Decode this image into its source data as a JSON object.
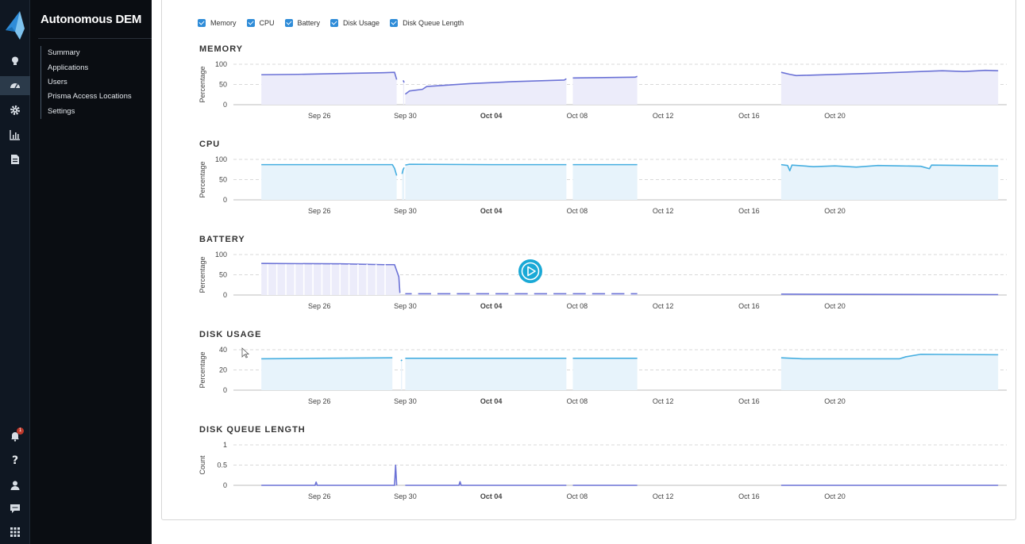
{
  "app": {
    "title": "Autonomous DEM",
    "nav_items": [
      "Summary",
      "Applications",
      "Users",
      "Prisma Access Locations",
      "Settings"
    ],
    "selected_nav": "Users",
    "notification_count": "1",
    "rail_icons": [
      "bulb-icon",
      "dashboard-icon",
      "gear-icon",
      "chart-icon",
      "report-icon",
      "bell-icon",
      "help-icon",
      "user-icon",
      "chat-icon",
      "apps-grid-icon"
    ],
    "accent_color": "#2f8cd8"
  },
  "legend": [
    {
      "label": "Memory",
      "checked": true
    },
    {
      "label": "CPU",
      "checked": true
    },
    {
      "label": "Battery",
      "checked": true
    },
    {
      "label": "Disk Usage",
      "checked": true
    },
    {
      "label": "Disk Queue Length",
      "checked": true
    }
  ],
  "chart_data": [
    {
      "type": "area",
      "title": "MEMORY",
      "ylabel": "Percentage",
      "ylim": [
        0,
        100
      ],
      "yticks": [
        "0",
        "50",
        "100"
      ],
      "xticks": [
        "Sep 26",
        "Sep 30",
        "Oct 04",
        "Oct 08",
        "Oct 12",
        "Oct 16",
        "Oct 20"
      ],
      "bold_xtick": "Oct 04",
      "color": "#6b72d6",
      "fill": "#ececfa",
      "segments": [
        [
          [
            23.3,
            74
          ],
          [
            25,
            75
          ],
          [
            27,
            77
          ],
          [
            29,
            79
          ],
          [
            29.5,
            80
          ],
          [
            29.6,
            62
          ]
        ],
        [
          [
            29.9,
            60
          ],
          [
            29.95,
            55
          ]
        ],
        [
          [
            30.0,
            26
          ],
          [
            30.2,
            34
          ],
          [
            30.8,
            38
          ],
          [
            31,
            45
          ],
          [
            33,
            52
          ],
          [
            35,
            57
          ],
          [
            37.4,
            61
          ],
          [
            37.5,
            64
          ]
        ],
        [
          [
            37.8,
            66
          ],
          [
            40.7,
            68
          ],
          [
            40.8,
            70
          ]
        ],
        [
          [
            47.5,
            80
          ],
          [
            47.9,
            75
          ],
          [
            48.2,
            72
          ],
          [
            52,
            78
          ],
          [
            54,
            82
          ],
          [
            55,
            84
          ],
          [
            56,
            82
          ],
          [
            57,
            85
          ],
          [
            57.6,
            84
          ]
        ]
      ]
    },
    {
      "type": "area",
      "title": "CPU",
      "ylabel": "Percentage",
      "ylim": [
        0,
        100
      ],
      "yticks": [
        "0",
        "50",
        "100"
      ],
      "xticks": [
        "Sep 26",
        "Sep 30",
        "Oct 04",
        "Oct 08",
        "Oct 12",
        "Oct 16",
        "Oct 20"
      ],
      "bold_xtick": "Oct 04",
      "color": "#45aee0",
      "fill": "#e7f3fb",
      "segments": [
        [
          [
            23.3,
            87
          ],
          [
            27,
            87
          ],
          [
            29.4,
            87
          ],
          [
            29.5,
            78
          ],
          [
            29.6,
            60
          ]
        ],
        [
          [
            29.85,
            64
          ],
          [
            29.9,
            75
          ],
          [
            29.95,
            80
          ]
        ],
        [
          [
            30.0,
            86
          ],
          [
            30.2,
            88
          ],
          [
            34,
            87
          ],
          [
            37.5,
            87
          ]
        ],
        [
          [
            37.8,
            87
          ],
          [
            40.8,
            87
          ]
        ],
        [
          [
            47.5,
            87
          ],
          [
            47.8,
            85
          ],
          [
            47.9,
            72
          ],
          [
            48.0,
            86
          ],
          [
            49,
            82
          ],
          [
            50,
            84
          ],
          [
            51,
            81
          ],
          [
            52,
            85
          ],
          [
            53,
            84
          ],
          [
            54,
            83
          ],
          [
            54.4,
            77
          ],
          [
            54.5,
            86
          ],
          [
            57.6,
            84
          ]
        ]
      ]
    },
    {
      "type": "area",
      "title": "BATTERY",
      "ylabel": "Percentage",
      "ylim": [
        0,
        100
      ],
      "yticks": [
        "0",
        "50",
        "100"
      ],
      "xticks": [
        "Sep 26",
        "Sep 30",
        "Oct 04",
        "Oct 08",
        "Oct 12",
        "Oct 16",
        "Oct 20"
      ],
      "bold_xtick": "Oct 04",
      "color": "#6b72d6",
      "fill": "#ececfa",
      "segments": [
        [
          [
            23.3,
            78
          ],
          [
            27,
            77
          ],
          [
            29,
            75
          ],
          [
            29.5,
            75
          ],
          [
            29.7,
            45
          ],
          [
            29.75,
            5
          ]
        ],
        [
          [
            30.0,
            3
          ],
          [
            37.5,
            3
          ]
        ],
        [
          [
            37.8,
            3
          ],
          [
            40.8,
            3
          ]
        ],
        [
          [
            47.5,
            2
          ],
          [
            57.6,
            1
          ]
        ]
      ]
    },
    {
      "type": "area",
      "title": "DISK USAGE",
      "ylabel": "Percentage",
      "ylim": [
        0,
        40
      ],
      "yticks": [
        "0",
        "20",
        "40"
      ],
      "xticks": [
        "Sep 26",
        "Sep 30",
        "Oct 04",
        "Oct 08",
        "Oct 12",
        "Oct 16",
        "Oct 20"
      ],
      "bold_xtick": "Oct 04",
      "color": "#45aee0",
      "fill": "#e7f3fb",
      "segments": [
        [
          [
            23.3,
            31
          ],
          [
            26,
            31.5
          ],
          [
            29.4,
            32
          ]
        ],
        [
          [
            29.8,
            29
          ],
          [
            29.85,
            30
          ]
        ],
        [
          [
            30.0,
            31.5
          ],
          [
            34,
            31.5
          ],
          [
            37.5,
            31.5
          ]
        ],
        [
          [
            37.8,
            31.5
          ],
          [
            40.8,
            31.5
          ]
        ],
        [
          [
            47.5,
            32
          ],
          [
            48.5,
            31
          ],
          [
            53,
            31
          ],
          [
            53.3,
            33
          ],
          [
            54,
            35.5
          ],
          [
            57.6,
            35
          ]
        ]
      ]
    },
    {
      "type": "line",
      "title": "DISK QUEUE LENGTH",
      "ylabel": "Count",
      "ylim": [
        0,
        1
      ],
      "yticks": [
        "0",
        "0.5",
        "1"
      ],
      "xticks": [
        "Sep 26",
        "Sep 30",
        "Oct 04",
        "Oct 08",
        "Oct 12",
        "Oct 16",
        "Oct 20"
      ],
      "bold_xtick": "Oct 04",
      "color": "#6b72d6",
      "fill": "none",
      "segments": [
        [
          [
            23.3,
            0
          ],
          [
            25.8,
            0
          ],
          [
            25.85,
            0.08
          ],
          [
            25.9,
            0
          ],
          [
            29.5,
            0
          ],
          [
            29.55,
            0.5
          ],
          [
            29.6,
            0
          ]
        ],
        [
          [
            30.0,
            0
          ],
          [
            32.5,
            0
          ],
          [
            32.55,
            0.09
          ],
          [
            32.6,
            0
          ],
          [
            37.5,
            0
          ]
        ],
        [
          [
            37.8,
            0
          ],
          [
            40.8,
            0
          ]
        ],
        [
          [
            47.5,
            0
          ],
          [
            57.6,
            0
          ]
        ]
      ]
    }
  ]
}
